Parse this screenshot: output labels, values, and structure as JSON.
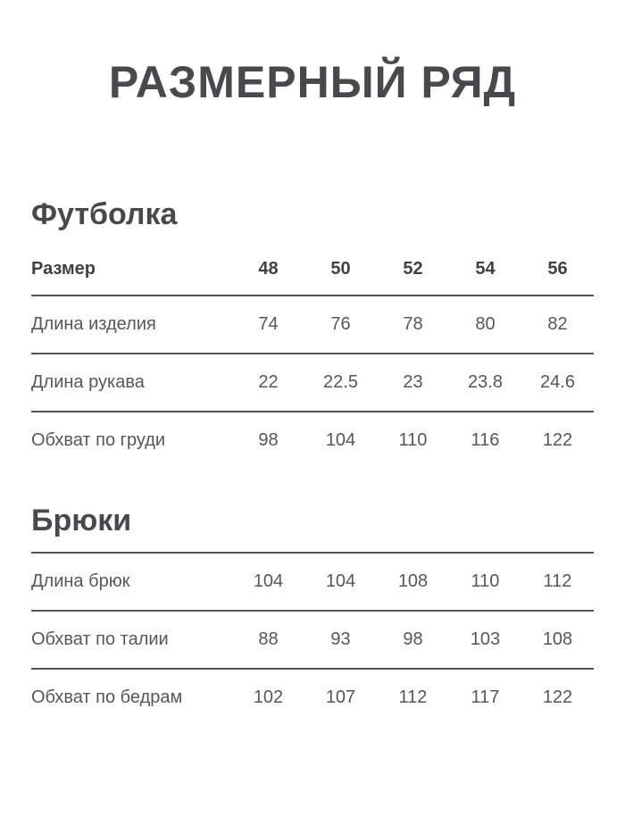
{
  "page": {
    "title": "РАЗМЕРНЫЙ РЯД",
    "background_color": "#ffffff",
    "heading_color": "#48494d",
    "text_color": "#56575b",
    "divider_color": "#55565a"
  },
  "sections": [
    {
      "heading": "Футболка",
      "header": {
        "label": "Размер",
        "values": [
          "48",
          "50",
          "52",
          "54",
          "56"
        ]
      },
      "rows": [
        {
          "label": "Длина изделия",
          "values": [
            "74",
            "76",
            "78",
            "80",
            "82"
          ]
        },
        {
          "label": "Длина рукава",
          "values": [
            "22",
            "22.5",
            "23",
            "23.8",
            "24.6"
          ]
        },
        {
          "label": "Обхват по груди",
          "values": [
            "98",
            "104",
            "110",
            "116",
            "122"
          ]
        }
      ]
    },
    {
      "heading": "Брюки",
      "rows": [
        {
          "label": "Длина брюк",
          "values": [
            "104",
            "104",
            "108",
            "110",
            "112"
          ]
        },
        {
          "label": "Обхват по талии",
          "values": [
            "88",
            "93",
            "98",
            "103",
            "108"
          ]
        },
        {
          "label": "Обхват по бедрам",
          "values": [
            "102",
            "107",
            "112",
            "117",
            "122"
          ]
        }
      ]
    }
  ]
}
